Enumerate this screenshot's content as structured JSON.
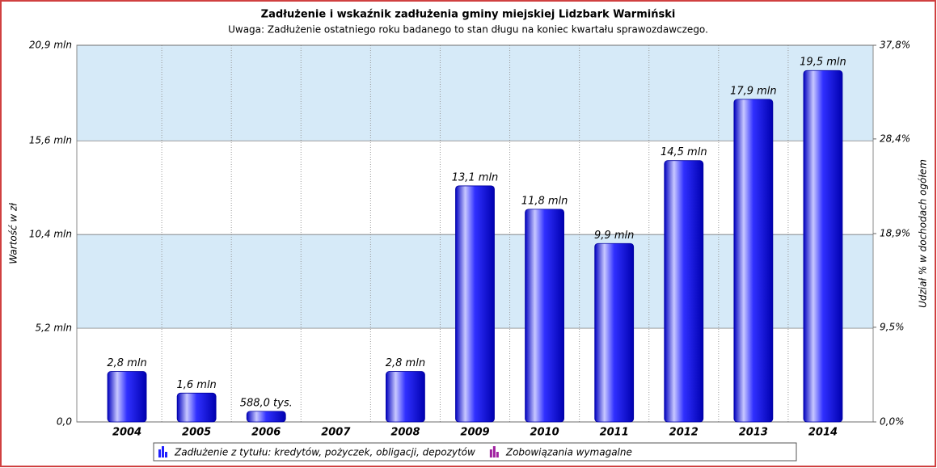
{
  "chart_data": {
    "type": "bar",
    "title": "Zadłużenie i wskaźnik zadłużenia gminy miejskiej Lidzbark Warmiński",
    "subtitle": "Uwaga: Zadłużenie ostatniego roku badanego to stan długu na koniec kwartału sprawozdawczego.",
    "y_label": "Wartość w zł",
    "y2_label": "Udział % w dochodach ogółem",
    "categories": [
      "2004",
      "2005",
      "2006",
      "2007",
      "2008",
      "2009",
      "2010",
      "2011",
      "2012",
      "2013",
      "2014"
    ],
    "series": [
      {
        "name": "Zadłużenie z tytułu: kredytów, pożyczek, obligacji, depozytów",
        "color": "#2020ff",
        "values": [
          2.8,
          1.6,
          0.588,
          null,
          2.8,
          13.1,
          11.8,
          9.9,
          14.5,
          17.9,
          19.5
        ],
        "value_labels": [
          "2,8 mln",
          "1,6 mln",
          "588,0 tys.",
          null,
          "2,8 mln",
          "13,1 mln",
          "11,8 mln",
          "9,9 mln",
          "14,5 mln",
          "17,9 mln",
          "19,5 mln"
        ]
      },
      {
        "name": "Zobowiązania wymagalne",
        "color": "#a020a0",
        "values": [
          null,
          null,
          null,
          null,
          null,
          null,
          null,
          null,
          null,
          null,
          null
        ]
      }
    ],
    "ylim": [
      0,
      20.9
    ],
    "yticks": [
      {
        "value": 0,
        "label": "0,0"
      },
      {
        "value": 5.2,
        "label": "5,2 mln"
      },
      {
        "value": 10.4,
        "label": "10,4 mln"
      },
      {
        "value": 15.6,
        "label": "15,6 mln"
      },
      {
        "value": 20.9,
        "label": "20,9 mln"
      }
    ],
    "y2lim": [
      0,
      37.8
    ],
    "y2ticks": [
      {
        "value": 0,
        "label": "0,0%"
      },
      {
        "value": 9.5,
        "label": "9,5%"
      },
      {
        "value": 18.9,
        "label": "18,9%"
      },
      {
        "value": 28.4,
        "label": "28,4%"
      },
      {
        "value": 37.8,
        "label": "37,8%"
      }
    ],
    "band_colors": [
      "#ffffff",
      "#d6eaf8"
    ]
  }
}
